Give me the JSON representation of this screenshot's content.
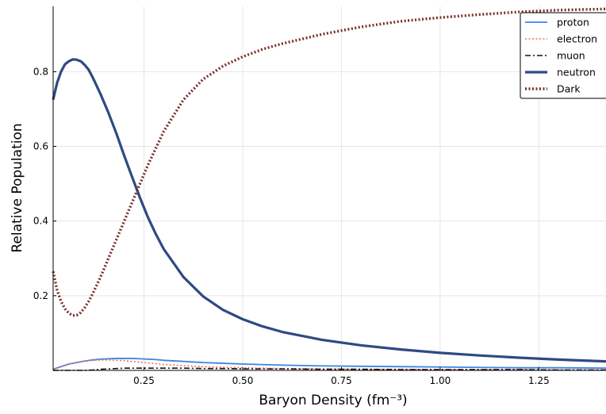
{
  "chart_data": {
    "type": "line",
    "xlabel": "Baryon Density (fm⁻³)",
    "ylabel": "Relative Population",
    "xlim": [
      0.02,
      1.42
    ],
    "ylim": [
      0.0,
      0.975
    ],
    "x_ticks": [
      0.25,
      0.5,
      0.75,
      1.0,
      1.25
    ],
    "x_tick_labels": [
      "0.25",
      "0.50",
      "0.75",
      "1.00",
      "1.25"
    ],
    "y_ticks": [
      0.2,
      0.4,
      0.6,
      0.8
    ],
    "y_tick_labels": [
      "0.2",
      "0.4",
      "0.6",
      "0.8"
    ],
    "grid": true,
    "legend_position": "top-right",
    "series": [
      {
        "name": "proton",
        "color": "#3a86e0",
        "style": "solid",
        "width": 1.8,
        "x": [
          0.02,
          0.04,
          0.06,
          0.08,
          0.1,
          0.12,
          0.14,
          0.16,
          0.18,
          0.2,
          0.22,
          0.24,
          0.26,
          0.28,
          0.3,
          0.35,
          0.4,
          0.45,
          0.5,
          0.6,
          0.7,
          0.8,
          0.9,
          1.0,
          1.1,
          1.2,
          1.3,
          1.42
        ],
        "y": [
          0.003,
          0.01,
          0.017,
          0.021,
          0.025,
          0.028,
          0.03,
          0.031,
          0.032,
          0.032,
          0.032,
          0.031,
          0.03,
          0.029,
          0.027,
          0.024,
          0.021,
          0.019,
          0.017,
          0.014,
          0.012,
          0.011,
          0.01,
          0.009,
          0.008,
          0.007,
          0.007,
          0.006
        ]
      },
      {
        "name": "electron",
        "color": "#f26b5b",
        "style": "dotted",
        "width": 1.6,
        "x": [
          0.02,
          0.04,
          0.06,
          0.08,
          0.1,
          0.12,
          0.14,
          0.16,
          0.18,
          0.2,
          0.22,
          0.24,
          0.26,
          0.28,
          0.3,
          0.35,
          0.4,
          0.45,
          0.5,
          0.6,
          0.7,
          0.8,
          0.9,
          1.0,
          1.1,
          1.2,
          1.3,
          1.42
        ],
        "y": [
          0.003,
          0.01,
          0.017,
          0.021,
          0.025,
          0.027,
          0.028,
          0.028,
          0.027,
          0.026,
          0.024,
          0.022,
          0.02,
          0.018,
          0.016,
          0.013,
          0.01,
          0.008,
          0.007,
          0.005,
          0.004,
          0.003,
          0.003,
          0.002,
          0.002,
          0.002,
          0.001,
          0.001
        ]
      },
      {
        "name": "muon",
        "color": "#111111",
        "style": "dashdot",
        "width": 1.6,
        "x": [
          0.02,
          0.1,
          0.12,
          0.14,
          0.16,
          0.18,
          0.2,
          0.22,
          0.24,
          0.26,
          0.28,
          0.3,
          0.35,
          0.4,
          0.45,
          0.5,
          0.6,
          0.7,
          0.8,
          0.9,
          1.0,
          1.1,
          1.2,
          1.3,
          1.42
        ],
        "y": [
          0.0,
          0.0,
          0.001,
          0.003,
          0.004,
          0.005,
          0.006,
          0.006,
          0.006,
          0.006,
          0.006,
          0.006,
          0.006,
          0.005,
          0.005,
          0.004,
          0.004,
          0.003,
          0.003,
          0.002,
          0.002,
          0.002,
          0.002,
          0.001,
          0.001
        ]
      },
      {
        "name": "neutron",
        "color": "#2e4a82",
        "style": "solid",
        "width": 3.2,
        "x": [
          0.02,
          0.03,
          0.04,
          0.05,
          0.06,
          0.07,
          0.08,
          0.09,
          0.1,
          0.11,
          0.12,
          0.14,
          0.16,
          0.18,
          0.2,
          0.22,
          0.24,
          0.26,
          0.28,
          0.3,
          0.35,
          0.4,
          0.45,
          0.5,
          0.55,
          0.6,
          0.7,
          0.8,
          0.9,
          1.0,
          1.1,
          1.2,
          1.3,
          1.42
        ],
        "y": [
          0.725,
          0.77,
          0.8,
          0.82,
          0.828,
          0.833,
          0.832,
          0.828,
          0.818,
          0.805,
          0.785,
          0.74,
          0.69,
          0.635,
          0.575,
          0.518,
          0.462,
          0.41,
          0.365,
          0.325,
          0.25,
          0.198,
          0.162,
          0.137,
          0.118,
          0.103,
          0.082,
          0.067,
          0.056,
          0.047,
          0.04,
          0.034,
          0.029,
          0.024
        ]
      },
      {
        "name": "Dark",
        "color": "#7b2f2b",
        "style": "dotted",
        "width": 3.4,
        "x": [
          0.02,
          0.03,
          0.04,
          0.05,
          0.06,
          0.07,
          0.08,
          0.09,
          0.1,
          0.11,
          0.12,
          0.14,
          0.16,
          0.18,
          0.2,
          0.22,
          0.24,
          0.26,
          0.28,
          0.3,
          0.35,
          0.4,
          0.45,
          0.5,
          0.55,
          0.6,
          0.7,
          0.8,
          0.9,
          1.0,
          1.1,
          1.2,
          1.3,
          1.42
        ],
        "y": [
          0.265,
          0.215,
          0.185,
          0.165,
          0.153,
          0.147,
          0.148,
          0.155,
          0.168,
          0.185,
          0.205,
          0.25,
          0.3,
          0.35,
          0.4,
          0.45,
          0.5,
          0.55,
          0.595,
          0.64,
          0.725,
          0.78,
          0.815,
          0.84,
          0.86,
          0.875,
          0.9,
          0.92,
          0.935,
          0.945,
          0.953,
          0.96,
          0.965,
          0.968
        ]
      }
    ]
  }
}
